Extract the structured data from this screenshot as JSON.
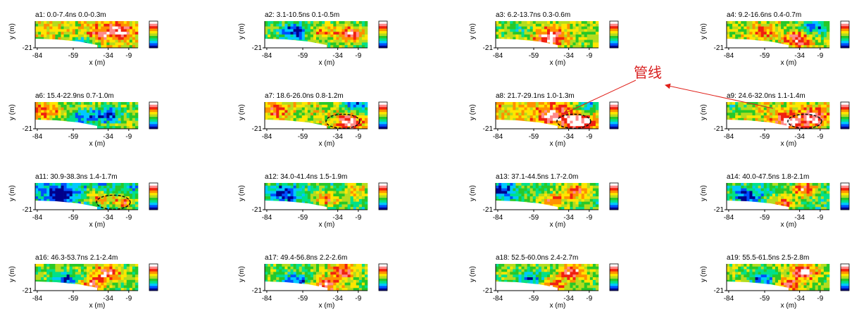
{
  "figure": {
    "annotation_label": "管线",
    "colors": {
      "arrow": "#e0201a",
      "annotation_text": "#d81e1e",
      "dashed_outline": "#111111",
      "colormap": [
        "#00008b",
        "#0050ff",
        "#00c8ff",
        "#00e08a",
        "#28c828",
        "#b4dc1e",
        "#ffe600",
        "#ff9000",
        "#f02010",
        "#ff8a8a",
        "#ffffff"
      ]
    }
  },
  "chart_data": [
    {
      "type": "heatmap",
      "title": "a1:  0.0-7.4ns  0.0-0.3m",
      "xlabel": "x (m)",
      "ylabel": "y (m)",
      "xticks": [
        "-84",
        "-59",
        "-34",
        "-9"
      ],
      "yticks": [
        "-21"
      ],
      "outline": false,
      "hot": [
        [
          0.82,
          0.35,
          0.85
        ],
        [
          0.6,
          0.55,
          0.7
        ]
      ],
      "cold": [
        [
          0.5,
          0.85,
          0.9
        ]
      ],
      "base": 0.55,
      "seed": 3
    },
    {
      "type": "heatmap",
      "title": "a2:  3.1-10.5ns  0.1-0.5m",
      "xlabel": "x (m)",
      "ylabel": "y (m)",
      "xticks": [
        "-84",
        "-59",
        "-34",
        "-9"
      ],
      "yticks": [
        "-21"
      ],
      "outline": false,
      "hot": [
        [
          0.82,
          0.5,
          1.0
        ],
        [
          0.55,
          0.4,
          0.55
        ]
      ],
      "cold": [
        [
          0.3,
          0.4,
          0.8
        ]
      ],
      "base": 0.42,
      "seed": 7
    },
    {
      "type": "heatmap",
      "title": "a3:  6.2-13.7ns  0.3-0.6m",
      "xlabel": "x (m)",
      "ylabel": "y (m)",
      "xticks": [
        "-84",
        "-59",
        "-34",
        "-9"
      ],
      "yticks": [
        "-21"
      ],
      "outline": false,
      "hot": [
        [
          0.55,
          0.5,
          0.75
        ],
        [
          0.48,
          0.8,
          0.7
        ]
      ],
      "cold": [
        [
          0.2,
          0.3,
          0.4
        ]
      ],
      "base": 0.5,
      "seed": 11
    },
    {
      "type": "heatmap",
      "title": "a4:  9.2-16.6ns  0.4-0.7m",
      "xlabel": "x (m)",
      "ylabel": "y (m)",
      "xticks": [
        "-84",
        "-59",
        "-34",
        "-9"
      ],
      "yticks": [
        "-21"
      ],
      "outline": false,
      "hot": [
        [
          0.7,
          0.7,
          0.85
        ],
        [
          0.35,
          0.4,
          0.5
        ]
      ],
      "cold": [
        [
          0.85,
          0.2,
          0.8
        ]
      ],
      "base": 0.5,
      "seed": 13
    },
    {
      "type": "heatmap",
      "title": "a6:  15.4-22.9ns  0.7-1.0m",
      "xlabel": "x (m)",
      "ylabel": "y (m)",
      "xticks": [
        "-84",
        "-59",
        "-34",
        "-9"
      ],
      "yticks": [
        "-21"
      ],
      "outline": false,
      "hot": [
        [
          0.1,
          0.3,
          0.6
        ]
      ],
      "cold": [
        [
          0.7,
          0.5,
          0.85
        ],
        [
          0.45,
          0.6,
          0.7
        ]
      ],
      "base": 0.48,
      "seed": 17
    },
    {
      "type": "heatmap",
      "title": "a7:  18.6-26.0ns  0.8-1.2m",
      "xlabel": "x (m)",
      "ylabel": "y (m)",
      "xticks": [
        "-84",
        "-59",
        "-34",
        "-9"
      ],
      "yticks": [
        "-21"
      ],
      "outline": true,
      "hot": [
        [
          0.82,
          0.75,
          0.9
        ],
        [
          0.1,
          0.3,
          0.55
        ]
      ],
      "cold": [
        [
          0.9,
          0.1,
          0.9
        ]
      ],
      "base": 0.52,
      "seed": 19
    },
    {
      "type": "heatmap",
      "title": "a8:  21.7-29.1ns  1.0-1.3m",
      "xlabel": "x (m)",
      "ylabel": "y (m)",
      "xticks": [
        "-84",
        "-59",
        "-34",
        "-9"
      ],
      "yticks": [
        "-21"
      ],
      "outline": true,
      "hot": [
        [
          0.8,
          0.75,
          1.0
        ],
        [
          0.55,
          0.5,
          0.7
        ]
      ],
      "cold": [
        [
          0.92,
          0.1,
          0.9
        ]
      ],
      "base": 0.6,
      "seed": 23
    },
    {
      "type": "heatmap",
      "title": "a9:  24.6-32.0ns  1.1-1.4m",
      "xlabel": "x (m)",
      "ylabel": "y (m)",
      "xticks": [
        "-84",
        "-59",
        "-34",
        "-9"
      ],
      "yticks": [
        "-21"
      ],
      "outline": true,
      "hot": [
        [
          0.6,
          0.75,
          1.0
        ],
        [
          0.85,
          0.6,
          0.9
        ]
      ],
      "cold": [
        [
          0.1,
          0.2,
          0.4
        ]
      ],
      "base": 0.55,
      "seed": 29
    },
    {
      "type": "heatmap",
      "title": "a11:  30.9-38.3ns  1.4-1.7m",
      "xlabel": "x (m)",
      "ylabel": "y (m)",
      "xticks": [
        "-84",
        "-59",
        "-34",
        "-9"
      ],
      "yticks": [
        "-21"
      ],
      "outline": true,
      "hot": [
        [
          0.86,
          0.7,
          0.95
        ],
        [
          0.6,
          0.55,
          0.8
        ]
      ],
      "cold": [
        [
          0.25,
          0.4,
          0.9
        ]
      ],
      "base": 0.28,
      "seed": 31
    },
    {
      "type": "heatmap",
      "title": "a12:  34.0-41.4ns  1.5-1.9m",
      "xlabel": "x (m)",
      "ylabel": "y (m)",
      "xticks": [
        "-84",
        "-59",
        "-34",
        "-9"
      ],
      "yticks": [
        "-21"
      ],
      "outline": false,
      "hot": [
        [
          0.6,
          0.6,
          0.85
        ],
        [
          0.9,
          0.3,
          0.7
        ]
      ],
      "cold": [
        [
          0.2,
          0.4,
          0.7
        ]
      ],
      "base": 0.35,
      "seed": 37
    },
    {
      "type": "heatmap",
      "title": "a13:  37.1-44.5ns  1.7-2.0m",
      "xlabel": "x (m)",
      "ylabel": "y (m)",
      "xticks": [
        "-84",
        "-59",
        "-34",
        "-9"
      ],
      "yticks": [
        "-21"
      ],
      "outline": false,
      "hot": [
        [
          0.78,
          0.3,
          0.85
        ],
        [
          0.55,
          0.7,
          0.8
        ]
      ],
      "cold": [
        [
          0.05,
          0.3,
          0.9
        ]
      ],
      "base": 0.4,
      "seed": 41
    },
    {
      "type": "heatmap",
      "title": "a14:  40.0-47.5ns  1.8-2.1m",
      "xlabel": "x (m)",
      "ylabel": "y (m)",
      "xticks": [
        "-84",
        "-59",
        "-34",
        "-9"
      ],
      "yticks": [
        "-21"
      ],
      "outline": false,
      "hot": [
        [
          0.75,
          0.25,
          0.9
        ],
        [
          0.55,
          0.75,
          0.8
        ]
      ],
      "cold": [
        [
          0.2,
          0.5,
          0.7
        ]
      ],
      "base": 0.38,
      "seed": 43
    },
    {
      "type": "heatmap",
      "title": "a16:  46.3-53.7ns  2.1-2.4m",
      "xlabel": "x (m)",
      "ylabel": "y (m)",
      "xticks": [
        "-84",
        "-59",
        "-34",
        "-9"
      ],
      "yticks": [
        "-21"
      ],
      "outline": false,
      "hot": [
        [
          0.7,
          0.35,
          0.95
        ],
        [
          0.55,
          0.85,
          0.8
        ]
      ],
      "cold": [
        [
          0.3,
          0.6,
          0.7
        ]
      ],
      "base": 0.45,
      "seed": 47
    },
    {
      "type": "heatmap",
      "title": "a17:  49.4-56.8ns  2.2-2.6m",
      "xlabel": "x (m)",
      "ylabel": "y (m)",
      "xticks": [
        "-84",
        "-59",
        "-34",
        "-9"
      ],
      "yticks": [
        "-21"
      ],
      "outline": false,
      "hot": [
        [
          0.75,
          0.3,
          0.9
        ],
        [
          0.58,
          0.85,
          0.95
        ]
      ],
      "cold": [
        [
          0.3,
          0.65,
          0.8
        ]
      ],
      "base": 0.45,
      "seed": 53
    },
    {
      "type": "heatmap",
      "title": "a18:  52.5-60.0ns  2.4-2.7m",
      "xlabel": "x (m)",
      "ylabel": "y (m)",
      "xticks": [
        "-84",
        "-59",
        "-34",
        "-9"
      ],
      "yticks": [
        "-21"
      ],
      "outline": false,
      "hot": [
        [
          0.75,
          0.3,
          1.0
        ],
        [
          0.55,
          0.85,
          0.8
        ]
      ],
      "cold": [
        [
          0.35,
          0.6,
          0.7
        ]
      ],
      "base": 0.45,
      "seed": 59
    },
    {
      "type": "heatmap",
      "title": "a19:  55.5-61.5ns  2.5-2.8m",
      "xlabel": "x (m)",
      "ylabel": "y (m)",
      "xticks": [
        "-84",
        "-59",
        "-34",
        "-9"
      ],
      "yticks": [
        "-21"
      ],
      "outline": false,
      "hot": [
        [
          0.75,
          0.3,
          1.0
        ],
        [
          0.6,
          0.8,
          0.7
        ]
      ],
      "cold": [
        [
          0.35,
          0.6,
          0.7
        ]
      ],
      "base": 0.45,
      "seed": 61
    }
  ]
}
